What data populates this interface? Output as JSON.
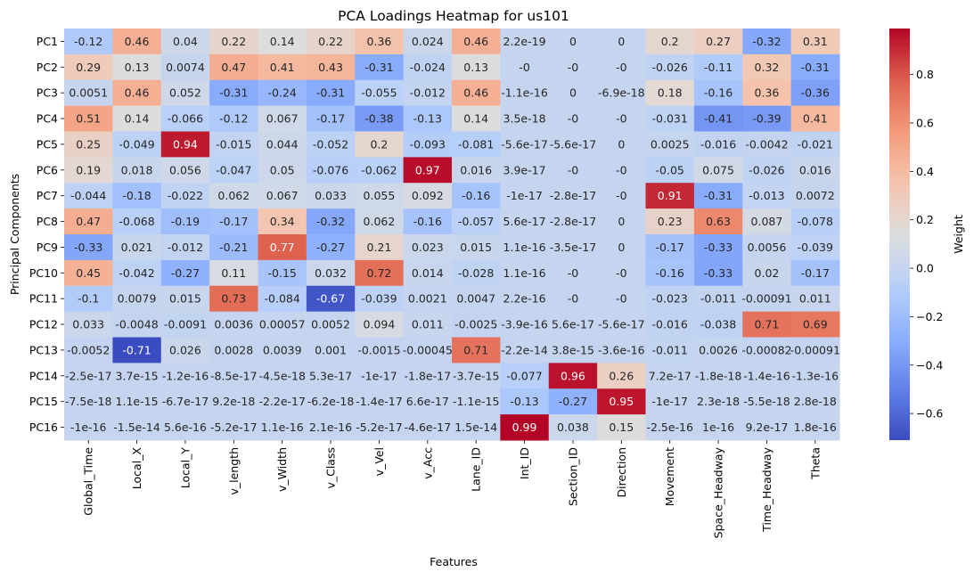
{
  "chart_data": {
    "type": "heatmap",
    "title": "PCA Loadings Heatmap for us101",
    "xlabel": "Features",
    "ylabel": "Principal Components",
    "colorbar_label": "Weight",
    "colormap": "coolwarm",
    "vmin": -0.71,
    "vmax": 0.99,
    "colorbar_ticks": [
      -0.6,
      -0.4,
      -0.2,
      0.0,
      0.2,
      0.4,
      0.6,
      0.8
    ],
    "colorbar_tick_labels": [
      "−0.6",
      "−0.4",
      "−0.2",
      "0.0",
      "0.2",
      "0.4",
      "0.6",
      "0.8"
    ],
    "columns": [
      "Global_Time",
      "Local_X",
      "Local_Y",
      "v_length",
      "v_Width",
      "v_Class",
      "v_Vel",
      "v_Acc",
      "Lane_ID",
      "Int_ID",
      "Section_ID",
      "Direction",
      "Movement",
      "Space_Headway",
      "Time_Headway",
      "Theta"
    ],
    "rows": [
      "PC1",
      "PC2",
      "PC3",
      "PC4",
      "PC5",
      "PC6",
      "PC7",
      "PC8",
      "PC9",
      "PC10",
      "PC11",
      "PC12",
      "PC13",
      "PC14",
      "PC15",
      "PC16"
    ],
    "values": [
      [
        -0.12,
        0.46,
        0.04,
        0.22,
        0.14,
        0.22,
        0.36,
        0.024,
        0.46,
        2.2e-19,
        0,
        0,
        0.2,
        0.27,
        -0.32,
        0.31
      ],
      [
        0.29,
        0.13,
        0.0074,
        0.47,
        0.41,
        0.43,
        -0.31,
        -0.024,
        0.13,
        -0.0,
        -0.0,
        -0.0,
        -0.026,
        -0.11,
        0.32,
        -0.31
      ],
      [
        0.0051,
        0.46,
        0.052,
        -0.31,
        -0.24,
        -0.31,
        -0.055,
        -0.012,
        0.46,
        -1.1e-16,
        0,
        -6.9e-18,
        0.18,
        -0.16,
        0.36,
        -0.36
      ],
      [
        0.51,
        0.14,
        -0.066,
        -0.12,
        0.067,
        -0.17,
        -0.38,
        -0.13,
        0.14,
        3.5e-18,
        -0.0,
        -0.0,
        -0.031,
        -0.41,
        -0.39,
        0.41
      ],
      [
        0.25,
        -0.049,
        0.94,
        -0.015,
        0.044,
        -0.052,
        0.2,
        -0.093,
        -0.081,
        -5.6e-17,
        -5.6e-17,
        0,
        0.0025,
        -0.016,
        -0.0042,
        -0.021
      ],
      [
        0.19,
        0.018,
        0.056,
        -0.047,
        0.05,
        -0.076,
        -0.062,
        0.97,
        0.016,
        3.9e-17,
        -0.0,
        -0.0,
        -0.05,
        0.075,
        -0.026,
        0.016
      ],
      [
        -0.044,
        -0.18,
        -0.022,
        0.062,
        0.067,
        0.033,
        0.055,
        0.092,
        -0.16,
        -1e-17,
        -2.8e-17,
        -0.0,
        0.91,
        -0.31,
        -0.013,
        0.0072
      ],
      [
        0.47,
        -0.068,
        -0.19,
        -0.17,
        0.34,
        -0.32,
        0.062,
        -0.16,
        -0.057,
        5.6e-17,
        -2.8e-17,
        0,
        0.23,
        0.63,
        0.087,
        -0.078
      ],
      [
        -0.33,
        0.021,
        -0.012,
        -0.21,
        0.77,
        -0.27,
        0.21,
        0.023,
        0.015,
        1.1e-16,
        -3.5e-17,
        0,
        -0.17,
        -0.33,
        0.0056,
        -0.039
      ],
      [
        0.45,
        -0.042,
        -0.27,
        0.11,
        -0.15,
        0.032,
        0.72,
        0.014,
        -0.028,
        1.1e-16,
        -0.0,
        -0.0,
        -0.16,
        -0.33,
        0.02,
        -0.17
      ],
      [
        -0.1,
        0.0079,
        0.015,
        0.73,
        -0.084,
        -0.67,
        -0.039,
        0.0021,
        0.0047,
        2.2e-16,
        -0.0,
        -0.0,
        -0.023,
        -0.011,
        -0.00091,
        0.011
      ],
      [
        0.033,
        -0.0048,
        -0.0091,
        0.0036,
        0.00057,
        0.0052,
        0.094,
        0.011,
        -0.0025,
        -3.9e-16,
        5.6e-17,
        -5.6e-17,
        -0.016,
        -0.038,
        0.71,
        0.69
      ],
      [
        -0.0052,
        -0.71,
        0.026,
        0.0028,
        0.0039,
        0.001,
        -0.0015,
        -0.00045,
        0.71,
        -2.2e-14,
        3.8e-15,
        -3.6e-16,
        -0.011,
        0.0026,
        -0.00082,
        -0.00091
      ],
      [
        -2.5e-17,
        3.7e-15,
        -1.2e-16,
        -8.5e-17,
        -4.5e-18,
        5.3e-17,
        -1e-17,
        -1.8e-17,
        -3.7e-15,
        -0.077,
        0.96,
        0.26,
        7.2e-17,
        -1.8e-18,
        -1.4e-16,
        -1.3e-16
      ],
      [
        -7.5e-18,
        1.1e-15,
        -6.7e-17,
        9.2e-18,
        -2.2e-17,
        -6.2e-18,
        -1.4e-17,
        6.6e-17,
        -1.1e-15,
        -0.13,
        -0.27,
        0.95,
        -1e-17,
        2.3e-18,
        -5.5e-18,
        2.8e-18
      ],
      [
        -1e-16,
        -1.5e-14,
        5.6e-16,
        -5.2e-17,
        1.1e-16,
        2.1e-16,
        -5.2e-17,
        -4.6e-17,
        1.5e-14,
        0.99,
        0.038,
        0.15,
        -2.5e-16,
        1e-16,
        9.2e-17,
        1.8e-16
      ]
    ],
    "annotations": [
      [
        "-0.12",
        "0.46",
        "0.04",
        "0.22",
        "0.14",
        "0.22",
        "0.36",
        "0.024",
        "0.46",
        "2.2e-19",
        "0",
        "0",
        "0.2",
        "0.27",
        "-0.32",
        "0.31"
      ],
      [
        "0.29",
        "0.13",
        "0.0074",
        "0.47",
        "0.41",
        "0.43",
        "-0.31",
        "-0.024",
        "0.13",
        "-0",
        "-0",
        "-0",
        "-0.026",
        "-0.11",
        "0.32",
        "-0.31"
      ],
      [
        "0.0051",
        "0.46",
        "0.052",
        "-0.31",
        "-0.24",
        "-0.31",
        "-0.055",
        "-0.012",
        "0.46",
        "-1.1e-16",
        "0",
        "-6.9e-18",
        "0.18",
        "-0.16",
        "0.36",
        "-0.36"
      ],
      [
        "0.51",
        "0.14",
        "-0.066",
        "-0.12",
        "0.067",
        "-0.17",
        "-0.38",
        "-0.13",
        "0.14",
        "3.5e-18",
        "-0",
        "-0",
        "-0.031",
        "-0.41",
        "-0.39",
        "0.41"
      ],
      [
        "0.25",
        "-0.049",
        "0.94",
        "-0.015",
        "0.044",
        "-0.052",
        "0.2",
        "-0.093",
        "-0.081",
        "-5.6e-17",
        "-5.6e-17",
        "0",
        "0.0025",
        "-0.016",
        "-0.0042",
        "-0.021"
      ],
      [
        "0.19",
        "0.018",
        "0.056",
        "-0.047",
        "0.05",
        "-0.076",
        "-0.062",
        "0.97",
        "0.016",
        "3.9e-17",
        "-0",
        "-0",
        "-0.05",
        "0.075",
        "-0.026",
        "0.016"
      ],
      [
        "-0.044",
        "-0.18",
        "-0.022",
        "0.062",
        "0.067",
        "0.033",
        "0.055",
        "0.092",
        "-0.16",
        "-1e-17",
        "-2.8e-17",
        "-0",
        "0.91",
        "-0.31",
        "-0.013",
        "0.0072"
      ],
      [
        "0.47",
        "-0.068",
        "-0.19",
        "-0.17",
        "0.34",
        "-0.32",
        "0.062",
        "-0.16",
        "-0.057",
        "5.6e-17",
        "-2.8e-17",
        "0",
        "0.23",
        "0.63",
        "0.087",
        "-0.078"
      ],
      [
        "-0.33",
        "0.021",
        "-0.012",
        "-0.21",
        "0.77",
        "-0.27",
        "0.21",
        "0.023",
        "0.015",
        "1.1e-16",
        "-3.5e-17",
        "0",
        "-0.17",
        "-0.33",
        "0.0056",
        "-0.039"
      ],
      [
        "0.45",
        "-0.042",
        "-0.27",
        "0.11",
        "-0.15",
        "0.032",
        "0.72",
        "0.014",
        "-0.028",
        "1.1e-16",
        "-0",
        "-0",
        "-0.16",
        "-0.33",
        "0.02",
        "-0.17"
      ],
      [
        "-0.1",
        "0.0079",
        "0.015",
        "0.73",
        "-0.084",
        "-0.67",
        "-0.039",
        "0.0021",
        "0.0047",
        "2.2e-16",
        "-0",
        "-0",
        "-0.023",
        "-0.011",
        "-0.00091",
        "0.011"
      ],
      [
        "0.033",
        "-0.0048",
        "-0.0091",
        "0.0036",
        "0.00057",
        "0.0052",
        "0.094",
        "0.011",
        "-0.0025",
        "-3.9e-16",
        "5.6e-17",
        "-5.6e-17",
        "-0.016",
        "-0.038",
        "0.71",
        "0.69"
      ],
      [
        "-0.0052",
        "-0.71",
        "0.026",
        "0.0028",
        "0.0039",
        "0.001",
        "-0.0015",
        "-0.00045",
        "0.71",
        "-2.2e-14",
        "3.8e-15",
        "-3.6e-16",
        "-0.011",
        "0.0026",
        "-0.00082",
        "-0.00091"
      ],
      [
        "-2.5e-17",
        "3.7e-15",
        "-1.2e-16",
        "-8.5e-17",
        "-4.5e-18",
        "5.3e-17",
        "-1e-17",
        "-1.8e-17",
        "-3.7e-15",
        "-0.077",
        "0.96",
        "0.26",
        "7.2e-17",
        "-1.8e-18",
        "-1.4e-16",
        "-1.3e-16"
      ],
      [
        "-7.5e-18",
        "1.1e-15",
        "-6.7e-17",
        "9.2e-18",
        "-2.2e-17",
        "-6.2e-18",
        "-1.4e-17",
        "6.6e-17",
        "-1.1e-15",
        "-0.13",
        "-0.27",
        "0.95",
        "-1e-17",
        "2.3e-18",
        "-5.5e-18",
        "2.8e-18"
      ],
      [
        "-1e-16",
        "-1.5e-14",
        "5.6e-16",
        "-5.2e-17",
        "1.1e-16",
        "2.1e-16",
        "-5.2e-17",
        "-4.6e-17",
        "1.5e-14",
        "0.99",
        "0.038",
        "0.15",
        "-2.5e-16",
        "1e-16",
        "9.2e-17",
        "1.8e-16"
      ]
    ]
  }
}
